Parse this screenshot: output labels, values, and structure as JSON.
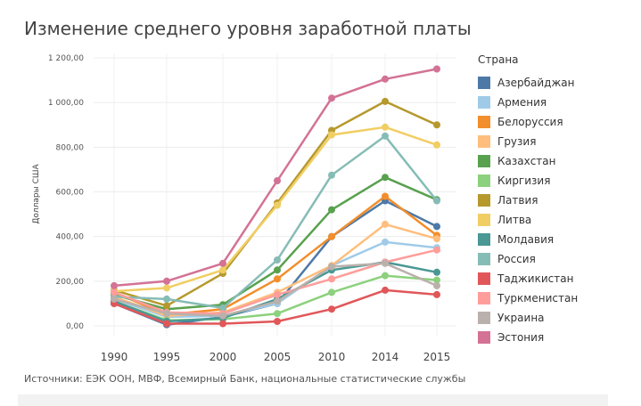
{
  "chart_data": {
    "type": "line",
    "title": "Изменение среднего уровня заработной платы",
    "ylabel": "Доллары США",
    "xlabel": "",
    "x": [
      "1990",
      "1995",
      "2000",
      "2005",
      "2010",
      "2014",
      "2015"
    ],
    "y_ticks": [
      "0,00",
      "200,00",
      "400,00",
      "600,00",
      "800,00",
      "1 000,00",
      "1 200,00"
    ],
    "ylim": [
      0,
      1200
    ],
    "grid": true,
    "legend_title": "Страна",
    "legend_position": "right",
    "series": [
      {
        "name": "Азербайджан",
        "color": "#4e79a7",
        "values": [
          100,
          5,
          40,
          100,
          400,
          560,
          445
        ]
      },
      {
        "name": "Армения",
        "color": "#a0cbe8",
        "values": [
          120,
          40,
          45,
          100,
          270,
          375,
          350
        ]
      },
      {
        "name": "Белоруссия",
        "color": "#f28e2b",
        "values": [
          150,
          50,
          75,
          210,
          400,
          580,
          405
        ]
      },
      {
        "name": "Грузия",
        "color": "#ffbe7d",
        "values": [
          130,
          45,
          60,
          150,
          270,
          455,
          390
        ]
      },
      {
        "name": "Казахстан",
        "color": "#59a14f",
        "values": [
          140,
          75,
          95,
          250,
          520,
          665,
          565
        ]
      },
      {
        "name": "Киргизия",
        "color": "#8cd17d",
        "values": [
          110,
          25,
          30,
          55,
          150,
          225,
          205
        ]
      },
      {
        "name": "Латвия",
        "color": "#b6992d",
        "values": [
          160,
          90,
          235,
          550,
          875,
          1005,
          900
        ]
      },
      {
        "name": "Литва",
        "color": "#f1ce63",
        "values": [
          155,
          170,
          250,
          540,
          855,
          890,
          810
        ]
      },
      {
        "name": "Молдавия",
        "color": "#499894",
        "values": [
          110,
          20,
          35,
          120,
          250,
          285,
          240
        ]
      },
      {
        "name": "Россия",
        "color": "#86bcb6",
        "values": [
          130,
          120,
          80,
          295,
          675,
          850,
          560
        ]
      },
      {
        "name": "Таджикистан",
        "color": "#e15759",
        "values": [
          100,
          10,
          10,
          20,
          75,
          160,
          140
        ]
      },
      {
        "name": "Туркменистан",
        "color": "#ff9d9a",
        "values": [
          150,
          60,
          55,
          140,
          210,
          285,
          340
        ]
      },
      {
        "name": "Украина",
        "color": "#bab0ac",
        "values": [
          120,
          55,
          45,
          110,
          265,
          280,
          180
        ]
      },
      {
        "name": "Эстония",
        "color": "#d37295",
        "values": [
          180,
          200,
          280,
          650,
          1020,
          1105,
          1150
        ]
      }
    ]
  },
  "source": "Источники: ЕЭК ООН, МВФ, Всемирный Банк, национальные статистические службы"
}
